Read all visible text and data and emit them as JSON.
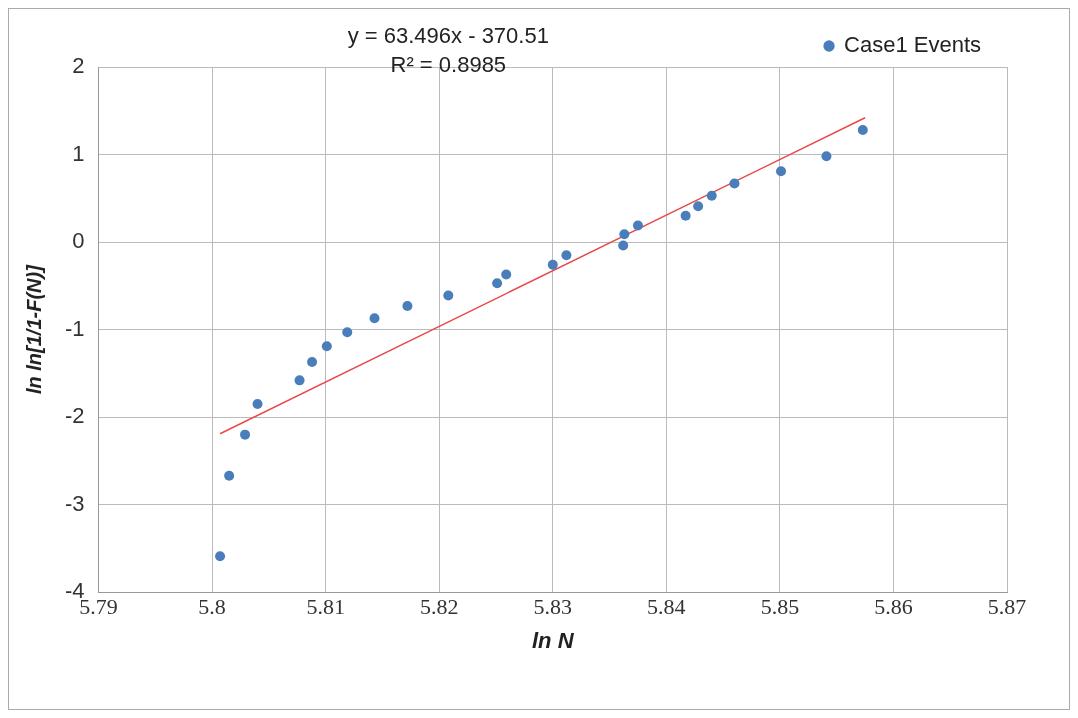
{
  "chart_data": {
    "type": "scatter",
    "xlabel": "ln N",
    "ylabel": "ln ln[1/1-F(N)]",
    "annotations": [
      "y = 63.496x - 370.51",
      "R² = 0.8985"
    ],
    "series": [
      {
        "name": "Case1 Events",
        "color": "#4a7ebb",
        "x": [
          5.8007,
          5.8015,
          5.8029,
          5.804,
          5.8077,
          5.8088,
          5.8101,
          5.8119,
          5.8143,
          5.8172,
          5.8208,
          5.8251,
          5.8259,
          5.83,
          5.8312,
          5.8362,
          5.8363,
          5.8375,
          5.8417,
          5.8428,
          5.844,
          5.846,
          5.8501,
          5.8541,
          5.8573
        ],
        "values": [
          -3.59,
          -2.67,
          -2.2,
          -1.85,
          -1.58,
          -1.37,
          -1.19,
          -1.03,
          -0.87,
          -0.73,
          -0.61,
          -0.47,
          -0.37,
          -0.26,
          -0.15,
          -0.04,
          0.09,
          0.19,
          0.3,
          0.41,
          0.53,
          0.67,
          0.81,
          0.98,
          1.28
        ]
      },
      {
        "type": "line",
        "color": "#e8484a",
        "x": [
          5.8007,
          5.8575
        ],
        "values": [
          -2.19,
          1.42
        ],
        "marker": "none"
      }
    ],
    "xlim": [
      5.79,
      5.87
    ],
    "xticks": [
      5.79,
      5.8,
      5.81,
      5.82,
      5.83,
      5.84,
      5.85,
      5.86,
      5.87
    ],
    "ylim": [
      -4,
      2
    ],
    "yticks": [
      -4,
      -3,
      -2,
      -1,
      0,
      1,
      2
    ],
    "grid": true,
    "legend": "top right",
    "marker": "circle"
  }
}
